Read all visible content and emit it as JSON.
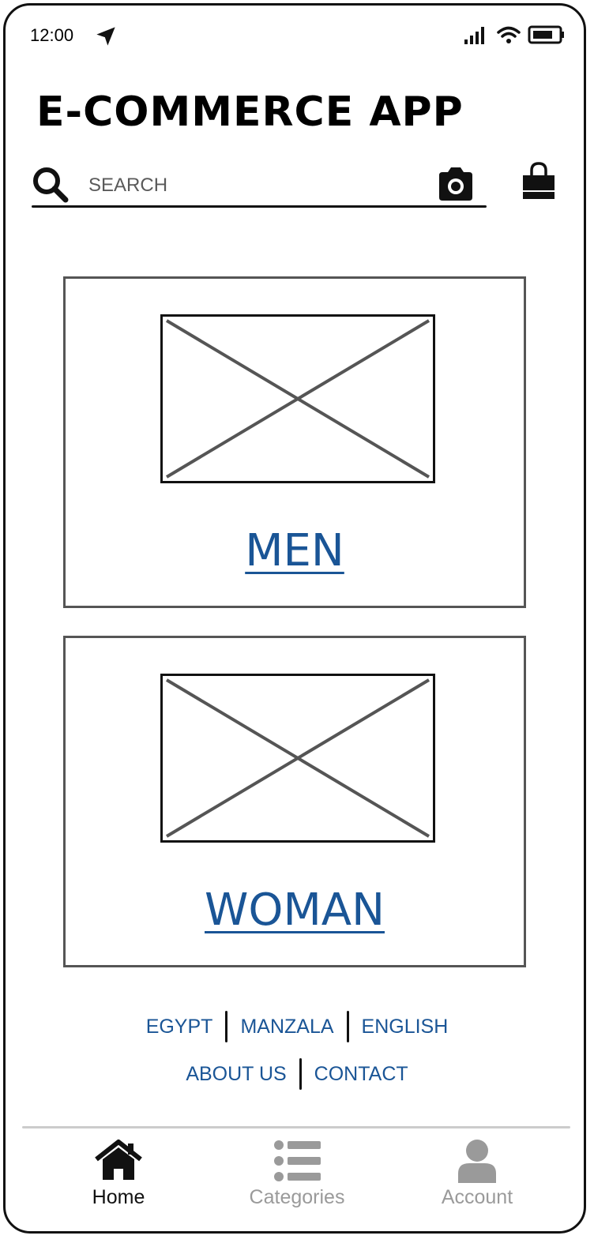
{
  "status_bar": {
    "time": "12:00"
  },
  "header": {
    "title": "E-COMMERCE APP"
  },
  "search": {
    "placeholder": "SEARCH"
  },
  "categories": [
    {
      "label": "MEN"
    },
    {
      "label": "WOMAN"
    }
  ],
  "footer_links": {
    "row1": [
      "EGYPT",
      "MANZALA",
      "ENGLISH"
    ],
    "row2": [
      "ABOUT US",
      "CONTACT"
    ]
  },
  "tab_bar": {
    "home": "Home",
    "categories": "Categories",
    "account": "Account",
    "active": "home"
  },
  "colors": {
    "link": "#1a5596",
    "text": "#111111",
    "inactive_tab": "#9a9a9a",
    "card_border": "#555555"
  },
  "icons": {
    "location": "location-arrow-icon",
    "signal": "signal-icon",
    "wifi": "wifi-icon",
    "battery": "battery-icon",
    "search": "search-icon",
    "camera": "camera-icon",
    "bag": "shopping-bag-icon",
    "home": "home-icon",
    "categories": "list-icon",
    "account": "user-icon"
  }
}
